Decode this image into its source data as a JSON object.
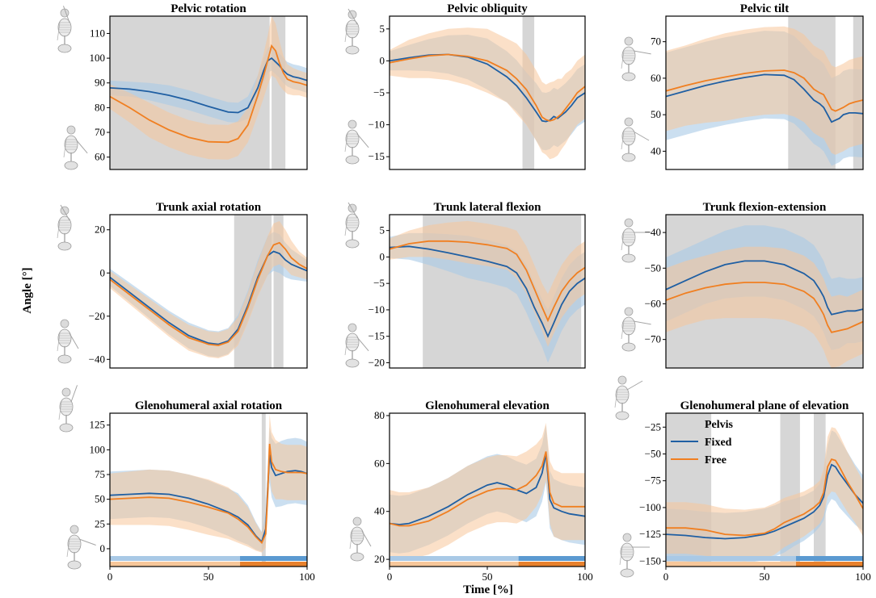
{
  "figure": {
    "xlabel": "Time [%]",
    "ylabel": "Angle [°]",
    "legend": {
      "title": "Pelvis",
      "entries": [
        "Fixed",
        "Free"
      ]
    },
    "colors": {
      "fixed": "#1f5fa3",
      "free": "#f07f21",
      "fixed_band": "#a9c9e6",
      "free_band": "#f7c79a",
      "shade": "#d6d6d6",
      "fixed_bar": "#5b9ad1",
      "free_bar": "#e8812d"
    }
  },
  "chart_data": [
    {
      "type": "line",
      "title": "Pelvic rotation",
      "xlim": [
        0,
        100
      ],
      "ylim": [
        55,
        117
      ],
      "yticks": [
        60,
        70,
        80,
        90,
        100,
        110
      ],
      "xticks": [],
      "shaded": [
        [
          0,
          81
        ],
        [
          82,
          89
        ]
      ],
      "x": [
        0,
        10,
        20,
        30,
        40,
        50,
        60,
        65,
        70,
        75,
        78,
        80,
        82,
        84,
        86,
        88,
        90,
        93,
        96,
        100
      ],
      "series": [
        {
          "name": "Fixed",
          "mean": [
            88,
            87.5,
            86.5,
            85,
            83,
            80.5,
            78.2,
            78,
            80,
            88,
            95,
            99,
            100,
            98.5,
            97,
            95,
            93.5,
            92.5,
            92,
            91
          ],
          "sd": [
            3,
            3,
            3.5,
            4,
            4,
            4,
            4,
            4,
            4.5,
            5,
            5,
            5,
            5,
            5,
            5,
            5,
            5,
            5,
            5,
            5
          ]
        },
        {
          "name": "Free",
          "mean": [
            84.5,
            80,
            75,
            71,
            68,
            66.2,
            66,
            67.5,
            73,
            85,
            93,
            99,
            105,
            103,
            98,
            94,
            91.5,
            90.5,
            90,
            89
          ],
          "sd": [
            5,
            6,
            7,
            7,
            7,
            7,
            7,
            7,
            7,
            8,
            9,
            10,
            12,
            11,
            9,
            7,
            6,
            5.5,
            5,
            5
          ]
        }
      ]
    },
    {
      "type": "line",
      "title": "Pelvic obliquity",
      "xlim": [
        0,
        100
      ],
      "ylim": [
        -17,
        7
      ],
      "yticks": [
        -15,
        -10,
        -5,
        0,
        5
      ],
      "xticks": [],
      "shaded": [
        [
          68,
          74
        ]
      ],
      "x": [
        0,
        10,
        20,
        30,
        40,
        50,
        60,
        65,
        70,
        75,
        78,
        80,
        82,
        84,
        86,
        88,
        90,
        93,
        96,
        100
      ],
      "series": [
        {
          "name": "Fixed",
          "mean": [
            0,
            0.5,
            0.9,
            1,
            0.6,
            -0.5,
            -2.5,
            -3.9,
            -5.8,
            -8,
            -9.4,
            -9.5,
            -9.3,
            -8.7,
            -9,
            -8.5,
            -8,
            -7,
            -5.8,
            -5
          ],
          "sd": [
            1.5,
            2,
            2.5,
            3,
            3.5,
            4,
            4,
            4,
            4,
            4.5,
            4.5,
            4.5,
            4.5,
            4.5,
            4.5,
            4.5,
            4.5,
            4.5,
            4.5,
            4.5
          ]
        },
        {
          "name": "Free",
          "mean": [
            -0.3,
            0.3,
            0.8,
            1,
            0.7,
            0,
            -1.5,
            -2.8,
            -4.5,
            -7,
            -8.8,
            -9.2,
            -9.4,
            -9.2,
            -8.8,
            -8.3,
            -7.5,
            -6.3,
            -5,
            -4
          ],
          "sd": [
            2,
            3,
            3.5,
            4,
            4.5,
            5,
            5,
            5.5,
            5.5,
            5.5,
            5.5,
            5.5,
            6,
            6,
            6,
            5.5,
            5.5,
            5,
            5,
            5
          ]
        }
      ]
    },
    {
      "type": "line",
      "title": "Pelvic tilt",
      "xlim": [
        0,
        100
      ],
      "ylim": [
        35,
        77
      ],
      "yticks": [
        40,
        50,
        60,
        70
      ],
      "xticks": [],
      "shaded": [
        [
          62,
          86
        ],
        [
          95,
          100
        ]
      ],
      "x": [
        0,
        10,
        20,
        30,
        40,
        50,
        60,
        65,
        70,
        75,
        78,
        80,
        82,
        84,
        86,
        88,
        90,
        93,
        96,
        100
      ],
      "series": [
        {
          "name": "Fixed",
          "mean": [
            55,
            56.5,
            58,
            59.2,
            60.2,
            61,
            60.8,
            59.6,
            57,
            54,
            53,
            52,
            50,
            48,
            48.5,
            49,
            50,
            50.5,
            50.5,
            50.3
          ],
          "sd": [
            12,
            12,
            12,
            12,
            12,
            12,
            12,
            12,
            12,
            12,
            12,
            12,
            12,
            12,
            12,
            12,
            12,
            12,
            12,
            12
          ]
        },
        {
          "name": "Free",
          "mean": [
            56.5,
            58,
            59.3,
            60.3,
            61.3,
            62,
            62.2,
            61.5,
            60,
            57,
            56,
            55.5,
            53.5,
            51.5,
            51,
            51.5,
            52,
            53,
            53.5,
            54
          ],
          "sd": [
            11,
            11,
            11.5,
            12,
            12,
            12,
            12,
            12,
            12,
            12,
            12,
            12,
            12,
            12,
            12,
            12,
            12,
            12,
            12,
            12
          ]
        }
      ]
    },
    {
      "type": "line",
      "title": "Trunk axial rotation",
      "xlim": [
        0,
        100
      ],
      "ylim": [
        -44,
        27
      ],
      "yticks": [
        -40,
        -20,
        0,
        20
      ],
      "xticks": [],
      "shaded": [
        [
          63,
          82
        ],
        [
          83,
          88
        ]
      ],
      "x": [
        0,
        10,
        20,
        30,
        40,
        50,
        55,
        60,
        65,
        70,
        75,
        80,
        83,
        86,
        89,
        92,
        96,
        100
      ],
      "series": [
        {
          "name": "Fixed",
          "mean": [
            -2,
            -9,
            -16,
            -23,
            -29,
            -32.5,
            -33,
            -31.5,
            -26,
            -15,
            -2,
            8,
            10,
            9,
            6,
            4,
            2.5,
            1
          ],
          "sd": [
            4,
            4.5,
            5,
            5.5,
            6,
            6,
            6,
            6,
            6.5,
            7,
            8,
            9,
            9,
            9,
            8,
            7,
            6,
            5
          ]
        },
        {
          "name": "Free",
          "mean": [
            -3,
            -10,
            -17,
            -24,
            -30,
            -33,
            -33.5,
            -32,
            -27,
            -16,
            -3,
            8,
            13,
            14,
            11,
            7,
            4,
            2
          ],
          "sd": [
            4,
            4.5,
            5,
            5.5,
            6,
            6,
            6,
            6,
            6.5,
            7,
            8,
            9,
            10,
            10,
            9,
            8,
            6,
            5
          ]
        }
      ]
    },
    {
      "type": "line",
      "title": "Trunk lateral flexion",
      "xlim": [
        0,
        100
      ],
      "ylim": [
        -21,
        8
      ],
      "yticks": [
        -20,
        -15,
        -10,
        -5,
        0,
        5
      ],
      "xticks": [],
      "shaded": [
        [
          17,
          98
        ]
      ],
      "x": [
        0,
        10,
        20,
        30,
        40,
        50,
        60,
        65,
        70,
        74,
        78,
        81,
        84,
        88,
        92,
        96,
        100
      ],
      "series": [
        {
          "name": "Fixed",
          "mean": [
            1.8,
            2,
            1.5,
            0.8,
            0,
            -0.8,
            -1.8,
            -3,
            -6,
            -9.5,
            -12.5,
            -15,
            -12.5,
            -9,
            -6.5,
            -5,
            -4
          ],
          "sd": [
            2,
            2.5,
            3,
            3.5,
            4,
            4,
            4,
            4,
            4.5,
            4.5,
            4.5,
            5,
            5,
            5,
            5,
            5,
            5
          ]
        },
        {
          "name": "Free",
          "mean": [
            1.5,
            2.5,
            3,
            3,
            2.8,
            2.3,
            1.6,
            0.5,
            -2.5,
            -6,
            -9.5,
            -12,
            -9.5,
            -6.5,
            -4.5,
            -3,
            -2
          ],
          "sd": [
            2,
            2.5,
            3,
            3.5,
            4,
            4,
            4,
            4.5,
            4.5,
            4.5,
            4.5,
            5,
            5,
            5,
            5,
            5,
            5
          ]
        }
      ]
    },
    {
      "type": "line",
      "title": "Trunk flexion-extension",
      "xlim": [
        0,
        100
      ],
      "ylim": [
        -78,
        -35
      ],
      "yticks": [
        -70,
        -60,
        -50,
        -40
      ],
      "xticks": [],
      "shaded": [
        [
          0,
          100
        ]
      ],
      "x": [
        0,
        10,
        20,
        30,
        40,
        50,
        60,
        70,
        75,
        78,
        80,
        82,
        84,
        88,
        92,
        96,
        100
      ],
      "series": [
        {
          "name": "Fixed",
          "mean": [
            -56,
            -53.5,
            -51,
            -49,
            -48,
            -48,
            -49,
            -51.5,
            -53.5,
            -56,
            -58,
            -61,
            -63,
            -62.5,
            -62,
            -62,
            -61.5
          ],
          "sd": [
            9,
            9,
            9,
            9.5,
            10,
            10,
            10,
            10,
            10,
            10,
            10,
            10,
            10,
            10,
            9,
            9,
            9
          ]
        },
        {
          "name": "Free",
          "mean": [
            -59,
            -57,
            -55.5,
            -54.5,
            -54,
            -54,
            -54.5,
            -56.5,
            -58.5,
            -61,
            -63,
            -66,
            -68,
            -67.5,
            -67,
            -66,
            -65
          ],
          "sd": [
            9,
            9,
            9,
            9.5,
            10,
            10,
            10,
            10,
            10,
            10,
            10,
            10,
            10,
            10,
            9,
            9,
            9
          ]
        }
      ]
    },
    {
      "type": "line",
      "title": "Glenohumeral axial rotation",
      "xlim": [
        0,
        100
      ],
      "ylim": [
        -18,
        137
      ],
      "yticks": [
        0,
        25,
        50,
        75,
        100,
        125
      ],
      "xticks": [
        0,
        50,
        100
      ],
      "shaded": [
        [
          77,
          79
        ]
      ],
      "phase_bars": true,
      "x": [
        0,
        10,
        20,
        30,
        40,
        50,
        60,
        65,
        70,
        74,
        77,
        79,
        80,
        81,
        82,
        84,
        87,
        90,
        94,
        97,
        100
      ],
      "series": [
        {
          "name": "Fixed",
          "mean": [
            54,
            55,
            56,
            55,
            51,
            45,
            37,
            32,
            24,
            13,
            7,
            20,
            60,
            95,
            82,
            74,
            76,
            78,
            79,
            78,
            76
          ],
          "sd": [
            24,
            24,
            24,
            24,
            24,
            24,
            24,
            24,
            20,
            14,
            10,
            14,
            22,
            28,
            30,
            32,
            33,
            33,
            33,
            33,
            32
          ]
        },
        {
          "name": "Free",
          "mean": [
            50,
            51,
            52,
            51,
            47,
            42,
            36,
            30,
            22,
            12,
            6,
            15,
            55,
            106,
            88,
            80,
            78,
            77,
            77,
            77,
            76
          ],
          "sd": [
            26,
            27,
            28,
            28,
            28,
            28,
            26,
            24,
            20,
            14,
            10,
            14,
            22,
            30,
            30,
            30,
            28,
            28,
            28,
            28,
            27
          ]
        }
      ]
    },
    {
      "type": "line",
      "title": "Glenohumeral elevation",
      "xlim": [
        0,
        100
      ],
      "ylim": [
        17,
        81
      ],
      "yticks": [
        20,
        40,
        60,
        80
      ],
      "xticks": [
        0,
        50,
        100
      ],
      "shaded": [],
      "phase_bars": true,
      "x": [
        0,
        5,
        10,
        20,
        30,
        40,
        50,
        55,
        60,
        65,
        70,
        75,
        78,
        80,
        81,
        82,
        84,
        88,
        92,
        96,
        100
      ],
      "series": [
        {
          "name": "Fixed",
          "mean": [
            35,
            34.5,
            35,
            38,
            42,
            47,
            51,
            52,
            51,
            49,
            47.5,
            50,
            56,
            64,
            55,
            45,
            41.5,
            40,
            39,
            38.5,
            38
          ],
          "sd": [
            12,
            12,
            12,
            12,
            12,
            12,
            12,
            12,
            12,
            12,
            12,
            12,
            12,
            12,
            12,
            12,
            12,
            12,
            12,
            12,
            12
          ]
        },
        {
          "name": "Free",
          "mean": [
            35,
            34,
            34,
            36,
            40,
            45,
            48.5,
            49.5,
            49.5,
            49,
            51,
            55,
            59,
            65,
            57,
            48,
            43.5,
            42,
            42,
            42,
            42
          ],
          "sd": [
            14,
            14,
            14,
            14,
            14,
            14,
            14,
            14,
            14,
            14,
            14,
            13,
            12,
            12,
            12,
            13,
            14,
            14,
            14,
            14,
            14
          ]
        }
      ]
    },
    {
      "type": "line",
      "title": "Glenohumeral plane of elevation",
      "xlim": [
        0,
        100
      ],
      "ylim": [
        -155,
        -12
      ],
      "yticks": [
        -150,
        -125,
        -100,
        -75,
        -50,
        -25
      ],
      "xticks": [
        0,
        50,
        100
      ],
      "shaded": [
        [
          0,
          23
        ],
        [
          58,
          68
        ],
        [
          75,
          81
        ]
      ],
      "phase_bars": true,
      "legend": true,
      "x": [
        0,
        10,
        20,
        30,
        40,
        50,
        55,
        60,
        65,
        70,
        75,
        78,
        80,
        82,
        84,
        86,
        88,
        92,
        96,
        100
      ],
      "series": [
        {
          "name": "Fixed",
          "mean": [
            -125,
            -126,
            -128,
            -129,
            -128,
            -125,
            -122,
            -118,
            -114,
            -110,
            -104,
            -98,
            -90,
            -70,
            -60,
            -62,
            -68,
            -78,
            -88,
            -96
          ],
          "sd": [
            24,
            24,
            24,
            24,
            24,
            24,
            24,
            24,
            22,
            21,
            20,
            20,
            22,
            28,
            32,
            32,
            32,
            30,
            28,
            26
          ]
        },
        {
          "name": "Free",
          "mean": [
            -119,
            -119,
            -121,
            -125,
            -126,
            -124,
            -120,
            -114,
            -110,
            -106,
            -100,
            -95,
            -86,
            -62,
            -55,
            -56,
            -62,
            -76,
            -88,
            -101
          ],
          "sd": [
            24,
            24,
            24,
            24,
            24,
            24,
            24,
            23,
            22,
            21,
            20,
            20,
            22,
            28,
            30,
            30,
            30,
            28,
            26,
            26
          ]
        }
      ]
    }
  ]
}
